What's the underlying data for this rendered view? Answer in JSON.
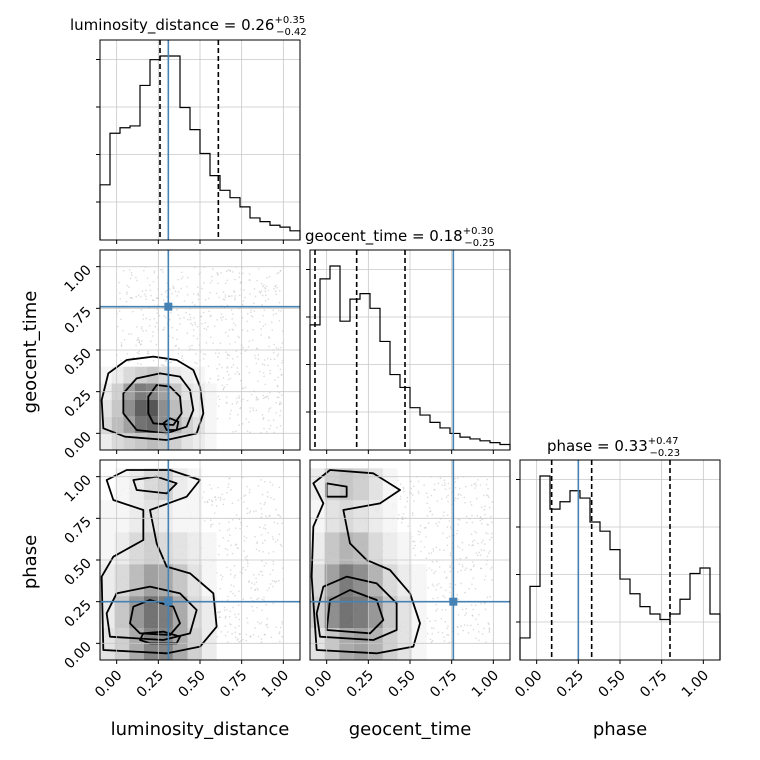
{
  "chart_data": {
    "type": "corner",
    "parameters": [
      "luminosity_distance",
      "geocent_time",
      "phase"
    ],
    "truths": [
      0.31,
      0.76,
      0.25
    ],
    "colors": {
      "truth": "#4682b4",
      "hist": "#000000",
      "contour": "#000000",
      "grid": "#c8c8c8"
    },
    "grid": true,
    "tick_values": [
      0.0,
      0.25,
      0.5,
      0.75,
      1.0
    ],
    "tick_labels": [
      "0.00",
      "0.25",
      "0.50",
      "0.75",
      "1.00"
    ],
    "xlim": [
      -0.1,
      1.1
    ],
    "ylim": [
      -0.1,
      1.1
    ],
    "titles": [
      {
        "param": "luminosity_distance",
        "label": "luminosity_distance",
        "median": "0.26",
        "plus": "+0.35",
        "minus": "−0.42"
      },
      {
        "param": "geocent_time",
        "label": "geocent_time",
        "median": "0.18",
        "plus": "+0.30",
        "minus": "−0.25"
      },
      {
        "param": "phase",
        "label": "phase",
        "median": "0.33",
        "plus": "+0.47",
        "minus": "−0.23"
      }
    ],
    "histograms": [
      {
        "param": "luminosity_distance",
        "bin_edges": [
          -0.1,
          -0.04,
          0.02,
          0.08,
          0.14,
          0.2,
          0.26,
          0.32,
          0.38,
          0.44,
          0.5,
          0.56,
          0.62,
          0.68,
          0.74,
          0.8,
          0.86,
          0.92,
          0.98,
          1.04,
          1.1
        ],
        "counts": [
          0.3,
          0.58,
          0.61,
          0.62,
          0.84,
          0.98,
          1.0,
          1.0,
          0.72,
          0.6,
          0.47,
          0.35,
          0.27,
          0.23,
          0.18,
          0.12,
          0.1,
          0.08,
          0.07,
          0.05
        ],
        "ymax": 1.0,
        "quantiles": [
          0.26,
          0.61
        ],
        "ytick_fractions": [
          0.2,
          0.45,
          0.7,
          0.95
        ]
      },
      {
        "param": "geocent_time",
        "bin_edges": [
          -0.1,
          -0.04,
          0.02,
          0.08,
          0.14,
          0.2,
          0.26,
          0.32,
          0.38,
          0.44,
          0.5,
          0.56,
          0.62,
          0.68,
          0.74,
          0.8,
          0.86,
          0.92,
          0.98,
          1.04,
          1.1
        ],
        "counts": [
          0.68,
          0.93,
          1.0,
          0.7,
          0.82,
          0.85,
          0.77,
          0.59,
          0.41,
          0.34,
          0.23,
          0.19,
          0.15,
          0.12,
          0.09,
          0.07,
          0.06,
          0.05,
          0.04,
          0.03
        ],
        "ymax": 1.0,
        "quantiles": [
          -0.07,
          0.18,
          0.47
        ],
        "ytick_fractions": [
          0.2,
          0.45,
          0.7,
          0.95
        ]
      },
      {
        "param": "phase",
        "bin_edges": [
          -0.1,
          -0.04,
          0.02,
          0.08,
          0.14,
          0.2,
          0.26,
          0.32,
          0.38,
          0.44,
          0.5,
          0.56,
          0.62,
          0.68,
          0.74,
          0.8,
          0.86,
          0.92,
          0.98,
          1.04,
          1.1
        ],
        "counts": [
          0.12,
          0.4,
          1.0,
          0.82,
          0.86,
          0.92,
          0.88,
          0.75,
          0.7,
          0.6,
          0.44,
          0.36,
          0.29,
          0.25,
          0.22,
          0.25,
          0.33,
          0.47,
          0.5,
          0.25
        ],
        "ymax": 1.0,
        "quantiles": [
          0.09,
          0.33,
          0.8
        ],
        "ytick_fractions": [
          0.2,
          0.45,
          0.7,
          0.95
        ]
      }
    ],
    "contour_panels": [
      {
        "x": "luminosity_distance",
        "y": "geocent_time",
        "levels": [
          [
            [
              0.05,
              -0.02
            ],
            [
              0.3,
              -0.04
            ],
            [
              0.48,
              0.0
            ],
            [
              0.52,
              0.12
            ],
            [
              0.5,
              0.28
            ],
            [
              0.46,
              0.38
            ],
            [
              0.36,
              0.44
            ],
            [
              0.22,
              0.46
            ],
            [
              0.06,
              0.44
            ],
            [
              -0.05,
              0.36
            ],
            [
              -0.09,
              0.2
            ],
            [
              -0.08,
              0.03
            ]
          ],
          [
            [
              0.12,
              0.02
            ],
            [
              0.3,
              0.0
            ],
            [
              0.42,
              0.04
            ],
            [
              0.46,
              0.14
            ],
            [
              0.44,
              0.26
            ],
            [
              0.38,
              0.34
            ],
            [
              0.26,
              0.36
            ],
            [
              0.12,
              0.33
            ],
            [
              0.04,
              0.24
            ],
            [
              0.04,
              0.12
            ]
          ],
          [
            [
              0.22,
              0.06
            ],
            [
              0.34,
              0.05
            ],
            [
              0.39,
              0.12
            ],
            [
              0.38,
              0.22
            ],
            [
              0.32,
              0.28
            ],
            [
              0.24,
              0.29
            ],
            [
              0.19,
              0.22
            ],
            [
              0.19,
              0.12
            ]
          ],
          [
            [
              0.3,
              0.02
            ],
            [
              0.36,
              0.02
            ],
            [
              0.37,
              0.07
            ],
            [
              0.32,
              0.09
            ],
            [
              0.28,
              0.06
            ]
          ]
        ],
        "hist2d": [
          [
            0.1,
            0.2,
            0.25,
            0.3,
            0.35,
            0.3,
            0.25,
            0.15,
            0.1,
            0.05
          ],
          [
            0.2,
            0.35,
            0.5,
            0.75,
            0.8,
            0.6,
            0.4,
            0.25,
            0.15,
            0.05
          ],
          [
            0.15,
            0.3,
            0.6,
            0.85,
            0.9,
            0.6,
            0.35,
            0.2,
            0.1,
            0.05
          ],
          [
            0.1,
            0.25,
            0.5,
            0.7,
            0.65,
            0.5,
            0.3,
            0.15,
            0.1,
            0.05
          ],
          [
            0.05,
            0.1,
            0.2,
            0.25,
            0.3,
            0.2,
            0.12,
            0.08,
            0.05,
            0.0
          ]
        ],
        "hist2d_x": [
          -0.1,
          0.6
        ],
        "hist2d_y": [
          -0.1,
          0.4
        ]
      },
      {
        "x": "luminosity_distance",
        "y": "phase",
        "levels": [
          [
            [
              -0.08,
              -0.04
            ],
            [
              0.3,
              -0.06
            ],
            [
              0.5,
              -0.02
            ],
            [
              0.6,
              0.1
            ],
            [
              0.58,
              0.3
            ],
            [
              0.44,
              0.42
            ],
            [
              0.3,
              0.46
            ],
            [
              0.24,
              0.6
            ],
            [
              0.2,
              0.8
            ],
            [
              0.42,
              0.88
            ],
            [
              0.5,
              0.98
            ],
            [
              0.32,
              1.04
            ],
            [
              0.06,
              1.04
            ],
            [
              -0.06,
              0.98
            ],
            [
              -0.02,
              0.86
            ],
            [
              0.16,
              0.8
            ],
            [
              0.16,
              0.62
            ],
            [
              -0.02,
              0.52
            ],
            [
              -0.09,
              0.4
            ]
          ],
          [
            [
              -0.04,
              0.04
            ],
            [
              0.28,
              0.02
            ],
            [
              0.44,
              0.06
            ],
            [
              0.48,
              0.2
            ],
            [
              0.38,
              0.3
            ],
            [
              0.2,
              0.34
            ],
            [
              0.0,
              0.3
            ],
            [
              -0.06,
              0.18
            ]
          ],
          [
            [
              0.14,
              0.06
            ],
            [
              0.32,
              0.05
            ],
            [
              0.38,
              0.12
            ],
            [
              0.34,
              0.22
            ],
            [
              0.2,
              0.26
            ],
            [
              0.1,
              0.22
            ],
            [
              0.08,
              0.12
            ]
          ],
          [
            [
              0.2,
              0.0
            ],
            [
              0.36,
              0.0
            ],
            [
              0.38,
              0.04
            ],
            [
              0.28,
              0.07
            ],
            [
              0.16,
              0.06
            ],
            [
              0.14,
              0.02
            ]
          ],
          [
            [
              0.12,
              0.92
            ],
            [
              0.3,
              0.9
            ],
            [
              0.36,
              0.96
            ],
            [
              0.24,
              1.0
            ],
            [
              0.1,
              0.98
            ]
          ]
        ],
        "hist2d": [
          [
            0.15,
            0.25,
            0.45,
            0.65,
            0.65,
            0.45,
            0.25,
            0.1
          ],
          [
            0.1,
            0.3,
            0.55,
            0.75,
            0.7,
            0.45,
            0.2,
            0.1
          ],
          [
            0.1,
            0.2,
            0.35,
            0.5,
            0.45,
            0.3,
            0.15,
            0.05
          ],
          [
            0.05,
            0.1,
            0.2,
            0.25,
            0.2,
            0.15,
            0.1,
            0.05
          ],
          [
            0.05,
            0.05,
            0.1,
            0.15,
            0.1,
            0.05,
            0.05,
            0.0
          ],
          [
            0.0,
            0.05,
            0.1,
            0.2,
            0.25,
            0.1,
            0.05,
            0.0
          ]
        ],
        "hist2d_x": [
          -0.1,
          0.6
        ],
        "hist2d_y": [
          -0.1,
          1.05
        ]
      },
      {
        "x": "geocent_time",
        "y": "phase",
        "levels": [
          [
            [
              -0.06,
              -0.04
            ],
            [
              0.3,
              -0.06
            ],
            [
              0.52,
              -0.02
            ],
            [
              0.56,
              0.12
            ],
            [
              0.5,
              0.3
            ],
            [
              0.38,
              0.44
            ],
            [
              0.24,
              0.5
            ],
            [
              0.14,
              0.6
            ],
            [
              0.1,
              0.8
            ],
            [
              0.32,
              0.84
            ],
            [
              0.44,
              0.92
            ],
            [
              0.28,
              1.02
            ],
            [
              0.02,
              1.04
            ],
            [
              -0.08,
              0.96
            ],
            [
              -0.02,
              0.84
            ],
            [
              -0.08,
              0.7
            ],
            [
              -0.09,
              0.4
            ]
          ],
          [
            [
              -0.04,
              0.04
            ],
            [
              0.28,
              0.02
            ],
            [
              0.42,
              0.08
            ],
            [
              0.42,
              0.24
            ],
            [
              0.3,
              0.36
            ],
            [
              0.12,
              0.4
            ],
            [
              -0.02,
              0.34
            ],
            [
              -0.06,
              0.18
            ]
          ],
          [
            [
              0.0,
              0.08
            ],
            [
              0.26,
              0.06
            ],
            [
              0.34,
              0.14
            ],
            [
              0.3,
              0.26
            ],
            [
              0.14,
              0.32
            ],
            [
              0.02,
              0.26
            ]
          ],
          [
            [
              0.0,
              0.88
            ],
            [
              0.12,
              0.88
            ],
            [
              0.12,
              0.94
            ],
            [
              0.0,
              0.96
            ]
          ]
        ],
        "hist2d": [
          [
            0.15,
            0.3,
            0.45,
            0.5,
            0.4,
            0.25,
            0.15,
            0.05
          ],
          [
            0.25,
            0.6,
            0.75,
            0.7,
            0.55,
            0.3,
            0.15,
            0.05
          ],
          [
            0.2,
            0.5,
            0.7,
            0.6,
            0.4,
            0.2,
            0.1,
            0.05
          ],
          [
            0.1,
            0.3,
            0.4,
            0.35,
            0.2,
            0.1,
            0.05,
            0.0
          ],
          [
            0.05,
            0.15,
            0.2,
            0.15,
            0.1,
            0.05,
            0.0,
            0.0
          ],
          [
            0.1,
            0.25,
            0.3,
            0.25,
            0.15,
            0.05,
            0.0,
            0.0
          ]
        ],
        "hist2d_x": [
          -0.1,
          0.6
        ],
        "hist2d_y": [
          -0.1,
          1.05
        ]
      }
    ]
  }
}
